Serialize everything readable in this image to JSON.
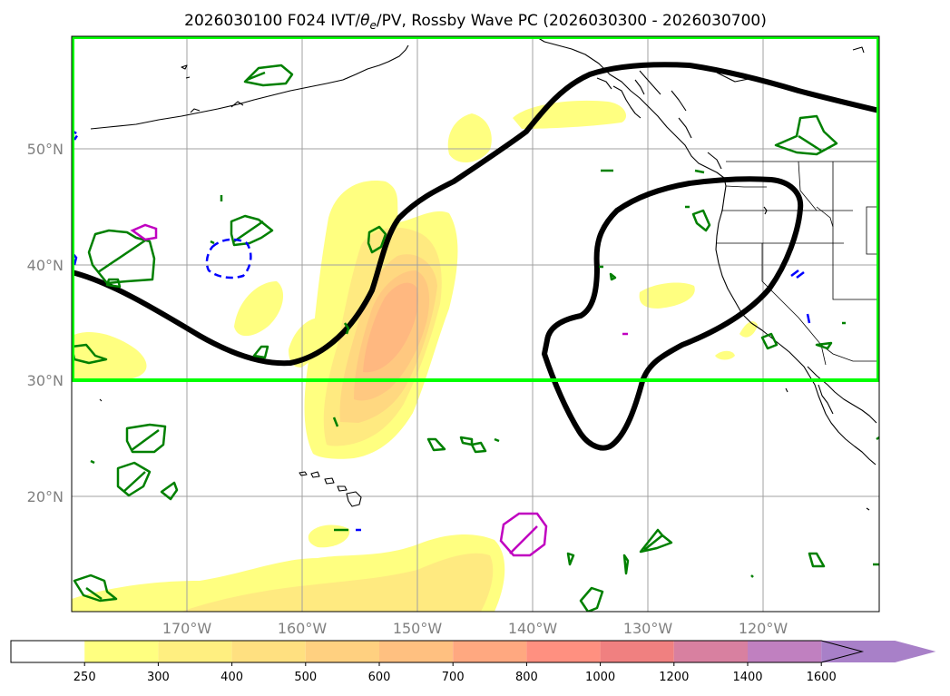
{
  "title": "2026030100 F024 IVT/θe/PV, Rossby Wave PC (2026030300 - 2026030700)",
  "title_parts": {
    "prefix": "2026030100 F024 IVT/",
    "theta": "θ",
    "theta_sub": "e",
    "suffix": "/PV, Rossby Wave PC (2026030300 - 2026030700)"
  },
  "map": {
    "lon_range": [
      180,
      110
    ],
    "lat_range": [
      10,
      60
    ],
    "lat_labels": [
      {
        "lat": 50,
        "label": "50°N"
      },
      {
        "lat": 40,
        "label": "40°N"
      },
      {
        "lat": 30,
        "label": "30°N"
      },
      {
        "lat": 20,
        "label": "20°N"
      }
    ],
    "lon_labels": [
      {
        "lon": 170,
        "label": "170°W"
      },
      {
        "lon": 160,
        "label": "160°W"
      },
      {
        "lon": 150,
        "label": "150°W"
      },
      {
        "lon": 140,
        "label": "140°W"
      },
      {
        "lon": 130,
        "label": "130°W"
      },
      {
        "lon": 120,
        "label": "120°W"
      }
    ],
    "highlight_box": {
      "lat_min": 30,
      "lat_max": 60,
      "lon_from": 180,
      "lon_to": 110,
      "color": "#00ff00"
    },
    "grid": true
  },
  "colorbar": {
    "levels": [
      "250",
      "300",
      "400",
      "500",
      "600",
      "700",
      "800",
      "1000",
      "1200",
      "1400",
      "1600"
    ],
    "colors": [
      "#ffff80",
      "#ffef80",
      "#ffe080",
      "#ffd080",
      "#ffc080",
      "#ffa880",
      "#ff9080",
      "#f08080",
      "#d880a0",
      "#c080c0",
      "#a880c8"
    ],
    "extend": "max"
  },
  "colors": {
    "ivt_contour": "#ffd000",
    "rossby_wave": "#000000",
    "pv_positive": "#008000",
    "pv_negative": "#0000ff",
    "theta_e": "#c000c0"
  }
}
